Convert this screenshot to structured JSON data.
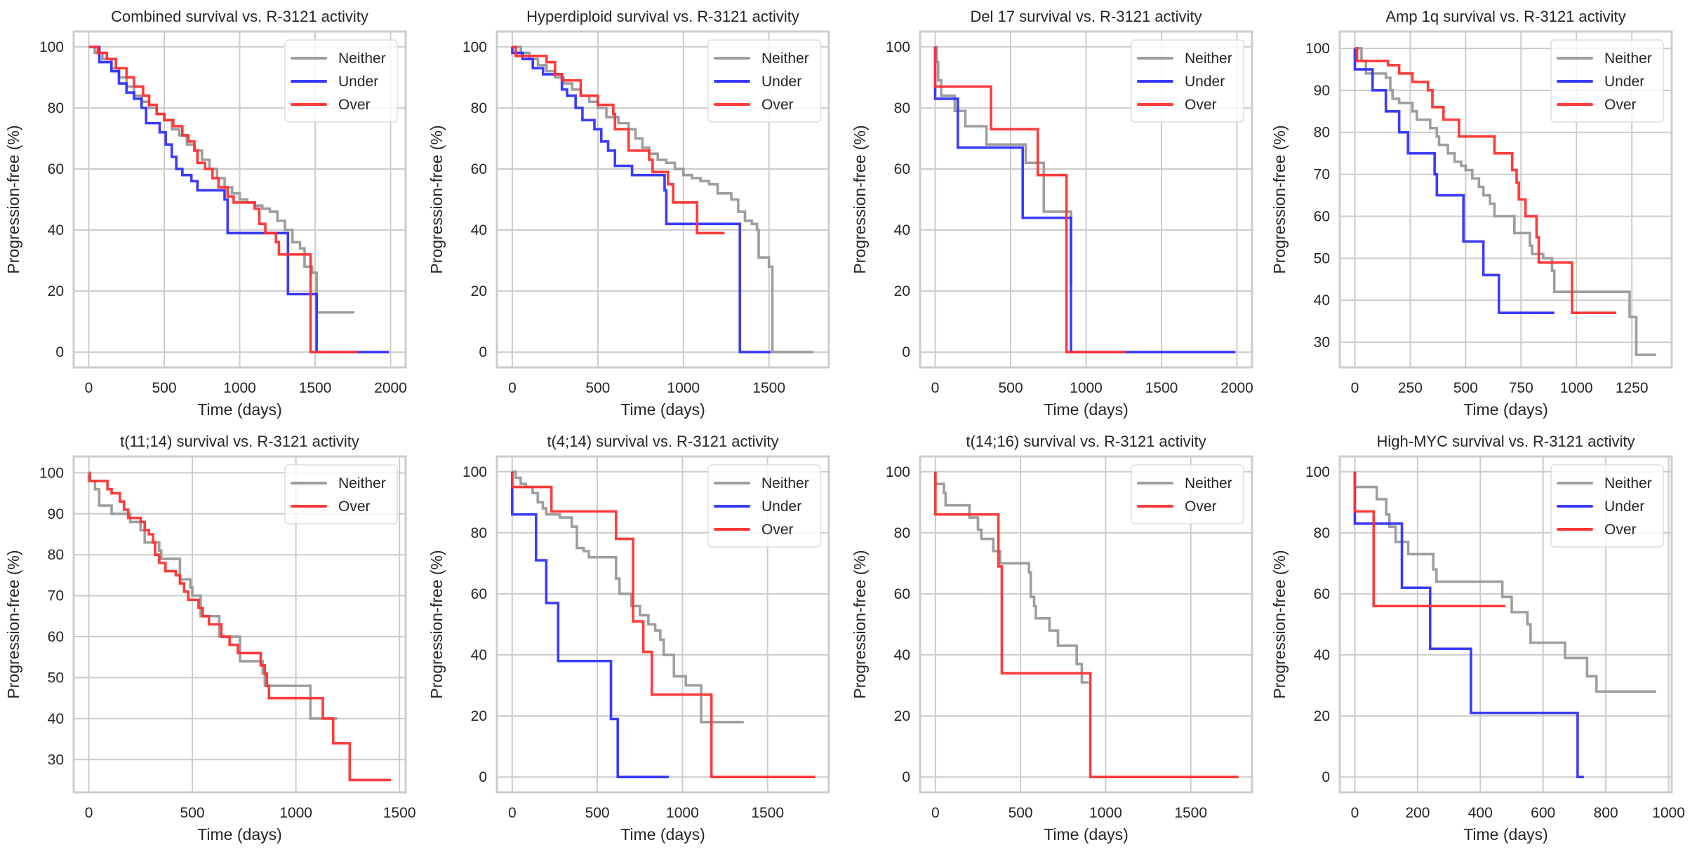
{
  "figure": {
    "series_colors": {
      "Neither": "#999999",
      "Under": "#3030ff",
      "Over": "#ff3030"
    },
    "xlabel": "Time (days)",
    "ylabel": "Progression-free (%)"
  },
  "chart_data": [
    {
      "type": "line",
      "title": "Combined survival vs. R-3121 activity",
      "xlabel": "Time (days)",
      "ylabel": "Progression-free (%)",
      "xlim": [
        -100,
        2100
      ],
      "ylim": [
        -5,
        105
      ],
      "xticks": [
        0,
        500,
        1000,
        1500,
        2000
      ],
      "yticks": [
        0,
        20,
        40,
        60,
        80,
        100
      ],
      "grid": true,
      "legend": "top-right",
      "series": [
        {
          "name": "Neither",
          "x": [
            0,
            40,
            90,
            150,
            200,
            250,
            300,
            350,
            400,
            450,
            500,
            550,
            600,
            650,
            700,
            750,
            800,
            850,
            900,
            950,
            1000,
            1050,
            1100,
            1150,
            1200,
            1250,
            1300,
            1350,
            1400,
            1430,
            1480,
            1510,
            1760
          ],
          "y": [
            100,
            98,
            96,
            93,
            90,
            87,
            84,
            82,
            80,
            78,
            76,
            73,
            71,
            68,
            66,
            63,
            60,
            57,
            54,
            52,
            50,
            49,
            48,
            47,
            46,
            43,
            40,
            36,
            34,
            28,
            26,
            13,
            13
          ]
        },
        {
          "name": "Under",
          "x": [
            0,
            70,
            150,
            200,
            250,
            300,
            350,
            380,
            420,
            470,
            510,
            550,
            580,
            620,
            680,
            720,
            900,
            920,
            1320,
            1500,
            1510,
            1990
          ],
          "y": [
            100,
            95,
            92,
            88,
            85,
            83,
            80,
            75,
            75,
            72,
            68,
            64,
            60,
            58,
            56,
            53,
            50,
            39,
            19,
            19,
            0,
            0
          ]
        },
        {
          "name": "Over",
          "x": [
            0,
            60,
            120,
            180,
            250,
            300,
            360,
            400,
            450,
            500,
            560,
            620,
            660,
            700,
            720,
            770,
            820,
            860,
            920,
            960,
            1100,
            1130,
            1170,
            1240,
            1260,
            1460,
            1470,
            1780
          ],
          "y": [
            100,
            98,
            96,
            93,
            90,
            87,
            84,
            81,
            78,
            76,
            74,
            71,
            69,
            66,
            62,
            60,
            57,
            54,
            51,
            49,
            47,
            42,
            39,
            36,
            32,
            32,
            0,
            0
          ]
        }
      ]
    },
    {
      "type": "line",
      "title": "Hyperdiploid survival vs. R-3121 activity",
      "xlabel": "Time (days)",
      "ylabel": "Progression-free (%)",
      "xlim": [
        -90,
        1850
      ],
      "ylim": [
        -5,
        105
      ],
      "xticks": [
        0,
        500,
        1000,
        1500
      ],
      "yticks": [
        0,
        20,
        40,
        60,
        80,
        100
      ],
      "grid": true,
      "legend": "top-right",
      "series": [
        {
          "name": "Neither",
          "x": [
            0,
            50,
            100,
            150,
            200,
            250,
            300,
            350,
            400,
            450,
            500,
            550,
            620,
            680,
            720,
            760,
            800,
            850,
            900,
            950,
            1000,
            1050,
            1100,
            1150,
            1200,
            1280,
            1320,
            1360,
            1400,
            1430,
            1440,
            1500,
            1520,
            1760
          ],
          "y": [
            100,
            98,
            96,
            94,
            92,
            90,
            88,
            86,
            84,
            82,
            80,
            77,
            75,
            73,
            70,
            67,
            65,
            63,
            62,
            60,
            58,
            57,
            56,
            55,
            52,
            50,
            46,
            43,
            42,
            40,
            31,
            28,
            0,
            0
          ]
        },
        {
          "name": "Under",
          "x": [
            0,
            60,
            120,
            180,
            290,
            320,
            370,
            410,
            480,
            520,
            560,
            600,
            700,
            890,
            900,
            1320,
            1330,
            1510
          ],
          "y": [
            98,
            96,
            93,
            91,
            86,
            84,
            80,
            76,
            73,
            69,
            66,
            61,
            58,
            53,
            42,
            42,
            0,
            0
          ]
        },
        {
          "name": "Over",
          "x": [
            0,
            20,
            200,
            250,
            290,
            400,
            500,
            590,
            600,
            680,
            800,
            820,
            910,
            940,
            1080,
            1240
          ],
          "y": [
            100,
            97,
            95,
            91,
            89,
            84,
            81,
            78,
            73,
            66,
            63,
            59,
            55,
            49,
            39,
            39
          ]
        }
      ]
    },
    {
      "type": "line",
      "title": "Del 17 survival vs. R-3121 activity",
      "xlabel": "Time (days)",
      "ylabel": "Progression-free (%)",
      "xlim": [
        -100,
        2100
      ],
      "ylim": [
        -5,
        105
      ],
      "xticks": [
        0,
        500,
        1000,
        1500,
        2000
      ],
      "yticks": [
        0,
        20,
        40,
        60,
        80,
        100
      ],
      "grid": true,
      "legend": "top-right",
      "series": [
        {
          "name": "Neither",
          "x": [
            0,
            10,
            20,
            40,
            130,
            200,
            340,
            600,
            720,
            900,
            910
          ],
          "y": [
            100,
            95,
            89,
            84,
            79,
            74,
            68,
            62,
            46,
            23,
            23
          ]
        },
        {
          "name": "Under",
          "x": [
            0,
            150,
            580,
            900,
            1990
          ],
          "y": [
            83,
            67,
            44,
            0,
            0
          ]
        },
        {
          "name": "Over",
          "x": [
            0,
            370,
            680,
            870,
            1260
          ],
          "y": [
            87,
            73,
            58,
            0,
            0
          ]
        }
      ]
    },
    {
      "type": "line",
      "title": "Amp 1q survival vs. R-3121 activity",
      "xlabel": "Time (days)",
      "ylabel": "Progression-free (%)",
      "xlim": [
        -68,
        1430
      ],
      "ylim": [
        24,
        104
      ],
      "xticks": [
        0,
        250,
        500,
        750,
        1000,
        1250
      ],
      "yticks": [
        30,
        40,
        50,
        60,
        70,
        80,
        90,
        100
      ],
      "grid": true,
      "legend": "top-right",
      "series": [
        {
          "name": "Neither",
          "x": [
            0,
            30,
            50,
            140,
            160,
            170,
            200,
            260,
            280,
            340,
            370,
            380,
            420,
            450,
            480,
            500,
            530,
            560,
            580,
            610,
            630,
            720,
            790,
            800,
            850,
            890,
            900,
            1240,
            1250,
            1270,
            1360
          ],
          "y": [
            100,
            97,
            94,
            93,
            90,
            88,
            87,
            85,
            83,
            81,
            79,
            77,
            75,
            73,
            72,
            71,
            69,
            67,
            65,
            63,
            60,
            56,
            53,
            51,
            50,
            47,
            42,
            36,
            36,
            27,
            27
          ]
        },
        {
          "name": "Under",
          "x": [
            0,
            80,
            140,
            200,
            240,
            360,
            370,
            490,
            580,
            650,
            900
          ],
          "y": [
            95,
            90,
            85,
            80,
            75,
            70,
            65,
            54,
            46,
            37,
            37
          ]
        },
        {
          "name": "Over",
          "x": [
            0,
            10,
            150,
            200,
            260,
            330,
            350,
            400,
            470,
            630,
            710,
            730,
            740,
            770,
            820,
            830,
            980,
            1180
          ],
          "y": [
            100,
            97,
            96,
            94,
            92,
            90,
            86,
            83,
            79,
            75,
            71,
            68,
            64,
            60,
            55,
            49,
            37,
            37
          ]
        }
      ]
    },
    {
      "type": "line",
      "title": "t(11;14) survival vs. R-3121 activity",
      "xlabel": "Time (days)",
      "ylabel": "Progression-free (%)",
      "xlim": [
        -73,
        1530
      ],
      "ylim": [
        22,
        104
      ],
      "xticks": [
        0,
        500,
        1000,
        1500
      ],
      "yticks": [
        30,
        40,
        50,
        60,
        70,
        80,
        90,
        100
      ],
      "grid": true,
      "legend": "top-right",
      "series": [
        {
          "name": "Neither",
          "x": [
            0,
            30,
            50,
            110,
            200,
            250,
            270,
            340,
            350,
            440,
            490,
            500,
            540,
            630,
            730,
            840,
            850,
            1070,
            1200
          ],
          "y": [
            98,
            96,
            92,
            90,
            88,
            86,
            83,
            81,
            79,
            74,
            72,
            70,
            65,
            60,
            54,
            51,
            48,
            40,
            40
          ]
        },
        {
          "name": "Over",
          "x": [
            0,
            5,
            70,
            90,
            110,
            150,
            170,
            190,
            250,
            270,
            290,
            310,
            320,
            340,
            370,
            420,
            440,
            460,
            480,
            530,
            550,
            580,
            640,
            680,
            720,
            830,
            850,
            860,
            870,
            1130,
            1180,
            1260,
            1460
          ],
          "y": [
            100,
            98,
            98,
            96,
            95,
            93,
            91,
            89,
            88,
            86,
            85,
            83,
            80,
            78,
            76,
            75,
            73,
            71,
            69,
            67,
            65,
            63,
            60,
            58,
            56,
            53,
            51,
            48,
            45,
            40,
            34,
            25,
            25
          ]
        }
      ]
    },
    {
      "type": "line",
      "title": "t(4;14) survival vs. R-3121 activity",
      "xlabel": "Time (days)",
      "ylabel": "Progression-free (%)",
      "xlim": [
        -90,
        1860
      ],
      "ylim": [
        -5,
        105
      ],
      "xticks": [
        0,
        500,
        1000,
        1500
      ],
      "yticks": [
        0,
        20,
        40,
        60,
        80,
        100
      ],
      "grid": true,
      "legend": "top-right",
      "series": [
        {
          "name": "Neither",
          "x": [
            0,
            20,
            50,
            80,
            120,
            150,
            180,
            200,
            280,
            350,
            380,
            420,
            450,
            590,
            610,
            630,
            700,
            750,
            800,
            840,
            870,
            890,
            950,
            1020,
            1110,
            1360
          ],
          "y": [
            100,
            98,
            96,
            95,
            93,
            90,
            88,
            86,
            85,
            82,
            75,
            74,
            72,
            72,
            65,
            60,
            56,
            53,
            50,
            48,
            45,
            40,
            33,
            30,
            18,
            18
          ]
        },
        {
          "name": "Under",
          "x": [
            0,
            140,
            200,
            270,
            580,
            620,
            920
          ],
          "y": [
            86,
            71,
            57,
            38,
            19,
            0,
            0
          ]
        },
        {
          "name": "Over",
          "x": [
            0,
            230,
            610,
            710,
            770,
            820,
            1170,
            1780
          ],
          "y": [
            95,
            87,
            78,
            51,
            41,
            27,
            0,
            0
          ]
        }
      ]
    },
    {
      "type": "line",
      "title": "t(14;16) survival vs. R-3121 activity",
      "xlabel": "Time (days)",
      "ylabel": "Progression-free (%)",
      "xlim": [
        -90,
        1860
      ],
      "ylim": [
        -5,
        105
      ],
      "xticks": [
        0,
        500,
        1000,
        1500
      ],
      "yticks": [
        0,
        20,
        40,
        60,
        80,
        100
      ],
      "grid": true,
      "legend": "top-right",
      "series": [
        {
          "name": "Neither",
          "x": [
            0,
            50,
            60,
            200,
            250,
            270,
            340,
            380,
            550,
            560,
            580,
            590,
            670,
            720,
            830,
            860,
            900
          ],
          "y": [
            96,
            93,
            89,
            85,
            81,
            78,
            74,
            70,
            67,
            59,
            56,
            52,
            48,
            43,
            37,
            31,
            31
          ]
        },
        {
          "name": "Over",
          "x": [
            0,
            370,
            390,
            910,
            1780
          ],
          "y": [
            86,
            69,
            34,
            0,
            0
          ]
        }
      ]
    },
    {
      "type": "line",
      "title": "High-MYC survival vs. R-3121 activity",
      "xlabel": "Time (days)",
      "ylabel": "Progression-free (%)",
      "xlim": [
        -48,
        1010
      ],
      "ylim": [
        -5,
        105
      ],
      "xticks": [
        0,
        200,
        400,
        600,
        800,
        1000
      ],
      "yticks": [
        0,
        20,
        40,
        60,
        80,
        100
      ],
      "grid": true,
      "legend": "top-right",
      "series": [
        {
          "name": "Neither",
          "x": [
            0,
            70,
            100,
            110,
            130,
            170,
            250,
            260,
            470,
            500,
            550,
            560,
            670,
            740,
            770,
            960
          ],
          "y": [
            95,
            91,
            86,
            82,
            77,
            73,
            68,
            64,
            59,
            54,
            50,
            44,
            39,
            33,
            28,
            28
          ]
        },
        {
          "name": "Under",
          "x": [
            0,
            150,
            240,
            370,
            710,
            730
          ],
          "y": [
            83,
            62,
            42,
            21,
            0,
            0
          ]
        },
        {
          "name": "Over",
          "x": [
            0,
            60,
            480
          ],
          "y": [
            87,
            56,
            56
          ]
        }
      ]
    }
  ]
}
